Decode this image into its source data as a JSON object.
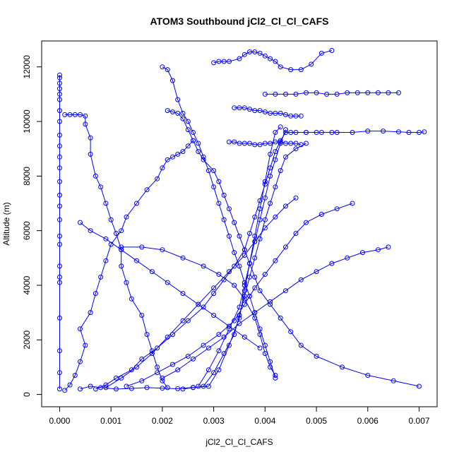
{
  "chart_data": {
    "type": "line",
    "title": "ATOM3 Southbound jCl2_Cl_Cl_CAFS",
    "xlabel": "jCl2_Cl_Cl_CAFS",
    "ylabel": "Altitude (m)",
    "xlim": [
      -0.00035,
      0.00735
    ],
    "ylim": [
      -450,
      12950
    ],
    "x_ticks": [
      0.0,
      0.001,
      0.002,
      0.003,
      0.004,
      0.005,
      0.006,
      0.007
    ],
    "x_tick_labels": [
      "0.000",
      "0.001",
      "0.002",
      "0.003",
      "0.004",
      "0.005",
      "0.006",
      "0.007"
    ],
    "y_ticks": [
      0,
      2000,
      4000,
      6000,
      8000,
      10000,
      12000
    ],
    "y_tick_labels": [
      "0",
      "2000",
      "4000",
      "6000",
      "8000",
      "10000",
      "12000"
    ],
    "grid": false,
    "legend": "none",
    "marker": "open-circle",
    "series_color": "#0000ff",
    "series": [
      {
        "x": [
          0.0,
          0.0,
          0.0,
          0.0,
          0.0,
          0.0,
          0.0,
          0.0,
          0.0,
          0.0,
          0.0,
          0.0,
          0.0,
          0.0,
          0.0,
          0.0,
          0.0,
          0.0,
          0.0,
          0.0,
          0.0,
          0.0,
          0.0,
          0.0,
          0.0
        ],
        "y": [
          200,
          800,
          1600,
          2800,
          4100,
          4300,
          4700,
          5500,
          5800,
          6400,
          6900,
          7300,
          7800,
          8300,
          8700,
          9100,
          9500,
          10000,
          10400,
          10800,
          11000,
          11200,
          11400,
          11600,
          11700
        ]
      },
      {
        "x": [
          0.0001,
          0.0002,
          0.0003,
          0.0004,
          0.0005,
          0.0004,
          0.0006,
          0.0007,
          0.0008,
          0.0009,
          0.001,
          0.0012,
          0.0013,
          0.0015,
          0.0017,
          0.0019,
          0.002,
          0.0021,
          0.0022,
          0.0023,
          0.0024,
          0.0025,
          0.0026
        ],
        "y": [
          150,
          350,
          700,
          1200,
          1800,
          2400,
          3000,
          3700,
          4300,
          4900,
          5500,
          6000,
          6500,
          7000,
          7500,
          7900,
          8300,
          8600,
          8700,
          8800,
          8900,
          9100,
          9300
        ]
      },
      {
        "x": [
          0.0001,
          0.0002,
          0.0003,
          0.0004,
          0.0005,
          0.0005,
          0.0006,
          0.0006,
          0.0007,
          0.0008,
          0.0009,
          0.001,
          0.0011,
          0.0012,
          0.0012,
          0.0013,
          0.0014,
          0.0016,
          0.0017,
          0.0018,
          0.0019,
          0.002,
          0.0021
        ],
        "y": [
          10250,
          10250,
          10250,
          10250,
          10200,
          9900,
          9400,
          8800,
          8000,
          7600,
          7000,
          6400,
          5900,
          5300,
          4700,
          4100,
          3500,
          2900,
          2200,
          1600,
          1000,
          500,
          250
        ]
      },
      {
        "x": [
          0.002,
          0.0021,
          0.0022,
          0.0023,
          0.0024,
          0.0025,
          0.0026,
          0.0027,
          0.0028,
          0.0029,
          0.003,
          0.0031,
          0.0032,
          0.0033,
          0.0034,
          0.0035,
          0.0036,
          0.0037,
          0.0038,
          0.0039,
          0.004,
          0.0041,
          0.0042
        ],
        "y": [
          12000,
          11900,
          11500,
          10800,
          10300,
          10000,
          9600,
          9200,
          8700,
          8200,
          7600,
          7000,
          6400,
          5800,
          5200,
          4700,
          4100,
          3600,
          3000,
          2400,
          1800,
          1200,
          600
        ]
      },
      {
        "x": [
          0.0021,
          0.0022,
          0.0023,
          0.0024,
          0.0025,
          0.0026,
          0.0027,
          0.0028,
          0.003,
          0.0031,
          0.0032,
          0.0033,
          0.0034,
          0.0035,
          0.0036,
          0.0037,
          0.0038,
          0.0039,
          0.0041,
          0.0043,
          0.0045,
          0.0047,
          0.005,
          0.0055,
          0.006,
          0.0065,
          0.007
        ],
        "y": [
          10400,
          10350,
          10300,
          10100,
          9700,
          9300,
          8900,
          8600,
          8200,
          7800,
          7300,
          6800,
          6300,
          5800,
          5300,
          4800,
          4300,
          3800,
          3300,
          2800,
          2300,
          1800,
          1400,
          1000,
          700,
          500,
          300
        ]
      },
      {
        "x": [
          0.0004,
          0.0006,
          0.0008,
          0.0011,
          0.0014,
          0.0017,
          0.002,
          0.0023,
          0.0026,
          0.0029,
          0.0031,
          0.0033,
          0.0035,
          0.0036,
          0.0037,
          0.0038,
          0.0039,
          0.004,
          0.0041,
          0.0042,
          0.0043
        ],
        "y": [
          200,
          300,
          250,
          200,
          220,
          250,
          230,
          210,
          260,
          300,
          900,
          1800,
          2800,
          3800,
          4800,
          5800,
          6800,
          7800,
          8800,
          9600,
          9800
        ]
      },
      {
        "x": [
          0.0007,
          0.0009,
          0.0011,
          0.0014,
          0.0016,
          0.0019,
          0.0022,
          0.0025,
          0.0028,
          0.003,
          0.0032,
          0.0034,
          0.0036,
          0.0037,
          0.0038,
          0.0039,
          0.004,
          0.0041,
          0.0042,
          0.0043,
          0.0044,
          0.0046,
          0.0048,
          0.005,
          0.0053
        ],
        "y": [
          200,
          350,
          600,
          900,
          1300,
          1700,
          2200,
          2700,
          3200,
          3700,
          4200,
          4700,
          5300,
          5900,
          6500,
          7100,
          7700,
          8300,
          8900,
          9300,
          9600,
          9600,
          9600,
          9600,
          9600
        ]
      },
      {
        "x": [
          0.0045,
          0.0048,
          0.0051,
          0.0054,
          0.0057,
          0.006,
          0.0063,
          0.0066,
          0.0068,
          0.007,
          0.0071
        ],
        "y": [
          9600,
          9600,
          9600,
          9600,
          9600,
          9650,
          9650,
          9620,
          9600,
          9600,
          9620
        ]
      },
      {
        "x": [
          0.004,
          0.0042,
          0.0044,
          0.0046,
          0.0048,
          0.005,
          0.0052,
          0.0054,
          0.0056,
          0.0058,
          0.006,
          0.0062,
          0.0064,
          0.0066
        ],
        "y": [
          11000,
          11000,
          11000,
          11000,
          11050,
          11050,
          11000,
          11000,
          11050,
          11050,
          11050,
          11050,
          11050,
          11050
        ]
      },
      {
        "x": [
          0.003,
          0.0031,
          0.0032,
          0.0033,
          0.0035,
          0.0036,
          0.0037,
          0.0038,
          0.0039,
          0.004,
          0.0041,
          0.0042,
          0.0043,
          0.0045,
          0.0047,
          0.0049,
          0.0051,
          0.0053
        ],
        "y": [
          12150,
          12200,
          12200,
          12200,
          12300,
          12450,
          12550,
          12550,
          12500,
          12400,
          12300,
          12200,
          12000,
          11900,
          11900,
          12100,
          12500,
          12600
        ]
      },
      {
        "x": [
          0.0034,
          0.0035,
          0.0036,
          0.0037,
          0.0038,
          0.0039,
          0.004,
          0.0041,
          0.0042,
          0.0043,
          0.0044,
          0.0045,
          0.0046,
          0.0047
        ],
        "y": [
          10500,
          10500,
          10500,
          10450,
          10400,
          10400,
          10350,
          10300,
          10300,
          10300,
          10250,
          10200,
          10200,
          10200
        ]
      },
      {
        "x": [
          0.0033,
          0.0034,
          0.0035,
          0.0036,
          0.0037,
          0.0038,
          0.0039,
          0.004,
          0.0041,
          0.0042,
          0.0043,
          0.0044,
          0.0045,
          0.0046,
          0.0047
        ],
        "y": [
          9250,
          9250,
          9200,
          9200,
          9200,
          9150,
          9150,
          9200,
          9200,
          9250,
          9250,
          9200,
          9200,
          9200,
          9150
        ]
      },
      {
        "x": [
          0.0024,
          0.0026,
          0.0028,
          0.003,
          0.0032,
          0.0034,
          0.0035,
          0.0036,
          0.0037,
          0.0038,
          0.0039,
          0.004,
          0.0041,
          0.0042,
          0.0043,
          0.0044,
          0.0046,
          0.0048
        ],
        "y": [
          200,
          250,
          300,
          800,
          1500,
          2200,
          2900,
          3600,
          4300,
          5000,
          5700,
          6400,
          7000,
          7600,
          8200,
          8700,
          9000,
          9200
        ]
      },
      {
        "x": [
          0.0013,
          0.0016,
          0.0019,
          0.0022,
          0.0025,
          0.0028,
          0.0031,
          0.0034,
          0.0036,
          0.0038,
          0.004,
          0.0042,
          0.0044,
          0.0046,
          0.0048,
          0.0051,
          0.0054,
          0.0057
        ],
        "y": [
          300,
          500,
          800,
          1100,
          1400,
          1800,
          2200,
          2700,
          3300,
          3900,
          4400,
          4900,
          5400,
          5900,
          6300,
          6600,
          6800,
          7000
        ]
      },
      {
        "x": [
          0.002,
          0.0023,
          0.0026,
          0.0029,
          0.0032,
          0.0035,
          0.0038,
          0.0041,
          0.0044,
          0.0047,
          0.005,
          0.0053,
          0.0056,
          0.0059,
          0.0062,
          0.0064
        ],
        "y": [
          600,
          900,
          1300,
          1700,
          2100,
          2600,
          3000,
          3400,
          3800,
          4200,
          4500,
          4800,
          5000,
          5200,
          5300,
          5400
        ]
      },
      {
        "x": [
          0.0009,
          0.0012,
          0.0015,
          0.0018,
          0.0021,
          0.0024,
          0.0027,
          0.003,
          0.0033,
          0.0036,
          0.0038,
          0.004,
          0.0042,
          0.0044,
          0.0046
        ],
        "y": [
          250,
          600,
          1000,
          1500,
          2100,
          2700,
          3300,
          3900,
          4500,
          5100,
          5600,
          6100,
          6500,
          6900,
          7200
        ]
      },
      {
        "x": [
          0.0027,
          0.0029,
          0.0031,
          0.0033,
          0.0035,
          0.0036,
          0.0037,
          0.0038,
          0.0039,
          0.004,
          0.0041,
          0.0042,
          0.0043,
          0.0044
        ],
        "y": [
          300,
          900,
          1600,
          2400,
          3200,
          4000,
          4800,
          5600,
          6400,
          7200,
          8000,
          8600,
          9200,
          9700
        ]
      },
      {
        "x": [
          0.0012,
          0.0016,
          0.002,
          0.0024,
          0.0028,
          0.0031,
          0.0034,
          0.0036,
          0.0038,
          0.0039,
          0.004,
          0.0041,
          0.0042
        ],
        "y": [
          5400,
          5400,
          5300,
          5000,
          4700,
          4400,
          4000,
          3500,
          2800,
          2200,
          1500,
          1000,
          700
        ]
      },
      {
        "x": [
          0.0004,
          0.0006,
          0.0009,
          0.0012,
          0.0015,
          0.0018,
          0.0021,
          0.0024,
          0.0027,
          0.003,
          0.0033,
          0.0036,
          0.0039
        ],
        "y": [
          6300,
          6000,
          5700,
          5300,
          4900,
          4500,
          4100,
          3700,
          3300,
          2900,
          2500,
          2100,
          1700
        ]
      }
    ]
  }
}
